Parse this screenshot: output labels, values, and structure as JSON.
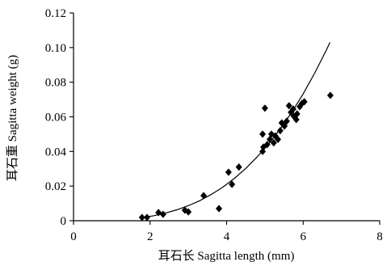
{
  "chart_data": {
    "type": "scatter",
    "xlabel": "耳石长 Sagitta length (mm)",
    "ylabel": "耳石重 Sagitta weight (g)",
    "xlim": [
      0,
      8
    ],
    "ylim": [
      0,
      0.12
    ],
    "x_ticks": [
      0,
      2,
      4,
      6,
      8
    ],
    "x_tick_labels": [
      "0",
      "2",
      "4",
      "6",
      "8"
    ],
    "y_ticks": [
      0,
      0.02,
      0.04,
      0.06,
      0.08,
      0.1,
      0.12
    ],
    "y_tick_labels": [
      "0",
      "0.02",
      "0.04",
      "0.06",
      "0.08",
      "0.10",
      "0.12"
    ],
    "grid": false,
    "legend": false,
    "marker": "diamond",
    "marker_color": "#000000",
    "line_color": "#000000",
    "series": [
      {
        "x": [
          1.79,
          1.92,
          2.22,
          2.34,
          2.91,
          3.0,
          3.4,
          3.8,
          4.05,
          4.14,
          4.32,
          4.94,
          4.96,
          4.94,
          5.0,
          5.06,
          5.13,
          5.17,
          5.23,
          5.27,
          5.34,
          5.4,
          5.44,
          5.51,
          5.57,
          5.63,
          5.68,
          5.74,
          5.76,
          5.82,
          5.84,
          5.91,
          5.97,
          6.03,
          6.71
        ],
        "y": [
          0.0019,
          0.0019,
          0.0047,
          0.0037,
          0.0061,
          0.0051,
          0.0145,
          0.007,
          0.028,
          0.021,
          0.031,
          0.04,
          0.0425,
          0.05,
          0.065,
          0.044,
          0.047,
          0.05,
          0.045,
          0.049,
          0.047,
          0.052,
          0.0565,
          0.0547,
          0.0575,
          0.0664,
          0.0626,
          0.0645,
          0.0603,
          0.0584,
          0.0617,
          0.0659,
          0.0678,
          0.0687,
          0.0724
        ]
      }
    ],
    "fit_curve": {
      "x": [
        1.8,
        2.1,
        2.4,
        2.7,
        3.0,
        3.3,
        3.6,
        3.9,
        4.2,
        4.5,
        4.8,
        5.1,
        5.4,
        5.7,
        6.0,
        6.3,
        6.6,
        6.7
      ],
      "y": [
        0.0018,
        0.0029,
        0.0044,
        0.0063,
        0.0087,
        0.0116,
        0.0152,
        0.0194,
        0.0244,
        0.0302,
        0.0369,
        0.0444,
        0.053,
        0.0626,
        0.0733,
        0.0852,
        0.0983,
        0.103
      ]
    }
  }
}
